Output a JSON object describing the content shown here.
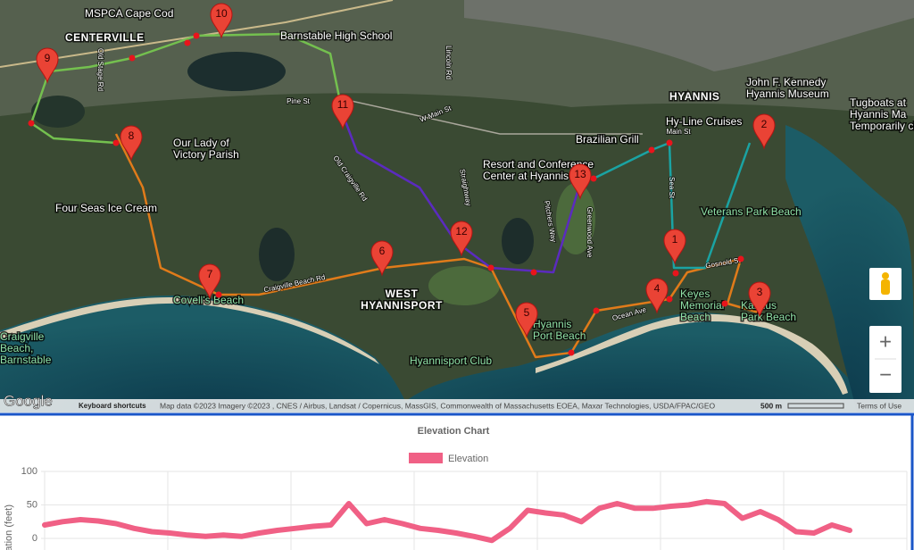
{
  "map": {
    "markers": [
      "1",
      "2",
      "3",
      "4",
      "5",
      "6",
      "7",
      "8",
      "9",
      "10",
      "11",
      "12",
      "13"
    ],
    "places": [
      {
        "lines": [
          "MSPCA Cape Cod"
        ],
        "kind": "poi"
      },
      {
        "lines": [
          "CENTERVILLE"
        ],
        "kind": "town"
      },
      {
        "lines": [
          "Barnstable High School"
        ],
        "kind": "poi"
      },
      {
        "lines": [
          "HYANNIS"
        ],
        "kind": "town"
      },
      {
        "lines": [
          "John F. Kennedy",
          "Hyannis Museum"
        ],
        "kind": "poi"
      },
      {
        "lines": [
          "Tugboats at",
          "Hyannis Ma",
          "Temporarily clo"
        ],
        "kind": "poi"
      },
      {
        "lines": [
          "Hy-Line Cruises"
        ],
        "kind": "poi"
      },
      {
        "lines": [
          "Brazilian Grill"
        ],
        "kind": "poi"
      },
      {
        "lines": [
          "Resort and Conference",
          "Center at Hyannis"
        ],
        "kind": "poi"
      },
      {
        "lines": [
          "Our Lady of",
          "Victory Parish"
        ],
        "kind": "poi"
      },
      {
        "lines": [
          "Four Seas Ice Cream"
        ],
        "kind": "poi"
      },
      {
        "lines": [
          "Veterans Park Beach"
        ],
        "kind": "park"
      },
      {
        "lines": [
          "Covell's Beach"
        ],
        "kind": "park"
      },
      {
        "lines": [
          "WEST",
          "HYANNISPORT"
        ],
        "kind": "town"
      },
      {
        "lines": [
          "Keyes",
          "Memorial",
          "Beach"
        ],
        "kind": "park"
      },
      {
        "lines": [
          "Kalmus",
          "Park Beach"
        ],
        "kind": "park"
      },
      {
        "lines": [
          "Hyannis",
          "Port Beach"
        ],
        "kind": "park"
      },
      {
        "lines": [
          "Hyannisport Club"
        ],
        "kind": "park"
      },
      {
        "lines": [
          "Craigville",
          "Beach,",
          "Barnstable"
        ],
        "kind": "park"
      }
    ],
    "roads": [
      "Pine St",
      "W Main St",
      "Old Craigville Rd",
      "Craigville Beach Rd",
      "Straightway",
      "Pitchers Way",
      "Greenwood Ave",
      "Ocean Ave",
      "Sea St",
      "Gosnold St",
      "Main St",
      "Old Stage Rd",
      "Lincoln Rd"
    ],
    "logo": "Google",
    "shortcuts": "Keyboard shortcuts",
    "attribution": "Map data ©2023 Imagery ©2023 , CNES / Airbus, Landsat / Copernicus, MassGIS, Commonwealth of Massachusetts EOEA, Maxar Technologies, USDA/FPAC/GEO",
    "scale": "500 m",
    "terms": "Terms of Use",
    "zoom_in": "+",
    "zoom_out": "−"
  },
  "chart_data": {
    "type": "line",
    "title": "Elevation Chart",
    "y_label": "Elevation (feet)",
    "categories": [
      null,
      null,
      null,
      null,
      null,
      null,
      null,
      null,
      null,
      null,
      null,
      null,
      null,
      null,
      null,
      null,
      null,
      null,
      null,
      null,
      null,
      null,
      null,
      null,
      null,
      null,
      null,
      null,
      null,
      null,
      null,
      null,
      null,
      null,
      null,
      null,
      null,
      null,
      null,
      null,
      null,
      null,
      null,
      null,
      null,
      null
    ],
    "series": [
      {
        "name": "Elevation",
        "color": "#f06085",
        "values": [
          20,
          25,
          28,
          26,
          22,
          15,
          10,
          8,
          5,
          3,
          5,
          3,
          8,
          12,
          15,
          18,
          20,
          52,
          22,
          28,
          22,
          15,
          12,
          8,
          3,
          -3,
          15,
          42,
          38,
          35,
          25,
          45,
          52,
          45,
          45,
          48,
          50,
          55,
          52,
          30,
          40,
          28,
          10,
          8,
          20,
          12
        ]
      }
    ],
    "ylim": [
      -10,
      100
    ],
    "yticks": [
      0,
      50,
      100
    ],
    "grid": true,
    "legend": "top"
  }
}
